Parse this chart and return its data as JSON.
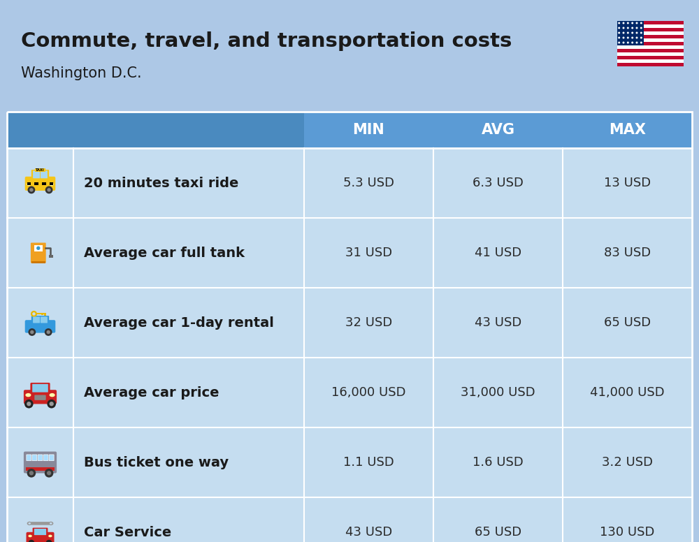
{
  "title": "Commute, travel, and transportation costs",
  "subtitle": "Washington D.C.",
  "background_color": "#adc8e6",
  "header_bg_color": "#5b9bd5",
  "header_dark_bg": "#4a8abf",
  "row_bg_color": "#c5ddf0",
  "header_text_color": "#ffffff",
  "label_text_color": "#1a1a1a",
  "value_text_color": "#2a2a2a",
  "columns": [
    "MIN",
    "AVG",
    "MAX"
  ],
  "rows": [
    {
      "label": "20 minutes taxi ride",
      "min": "5.3 USD",
      "avg": "6.3 USD",
      "max": "13 USD"
    },
    {
      "label": "Average car full tank",
      "min": "31 USD",
      "avg": "41 USD",
      "max": "83 USD"
    },
    {
      "label": "Average car 1-day rental",
      "min": "32 USD",
      "avg": "43 USD",
      "max": "65 USD"
    },
    {
      "label": "Average car price",
      "min": "16,000 USD",
      "avg": "31,000 USD",
      "max": "41,000 USD"
    },
    {
      "label": "Bus ticket one way",
      "min": "1.1 USD",
      "avg": "1.6 USD",
      "max": "3.2 USD"
    },
    {
      "label": "Car Service",
      "min": "43 USD",
      "avg": "65 USD",
      "max": "130 USD"
    }
  ],
  "title_fontsize": 21,
  "subtitle_fontsize": 15,
  "header_fontsize": 15,
  "label_fontsize": 14,
  "value_fontsize": 13
}
